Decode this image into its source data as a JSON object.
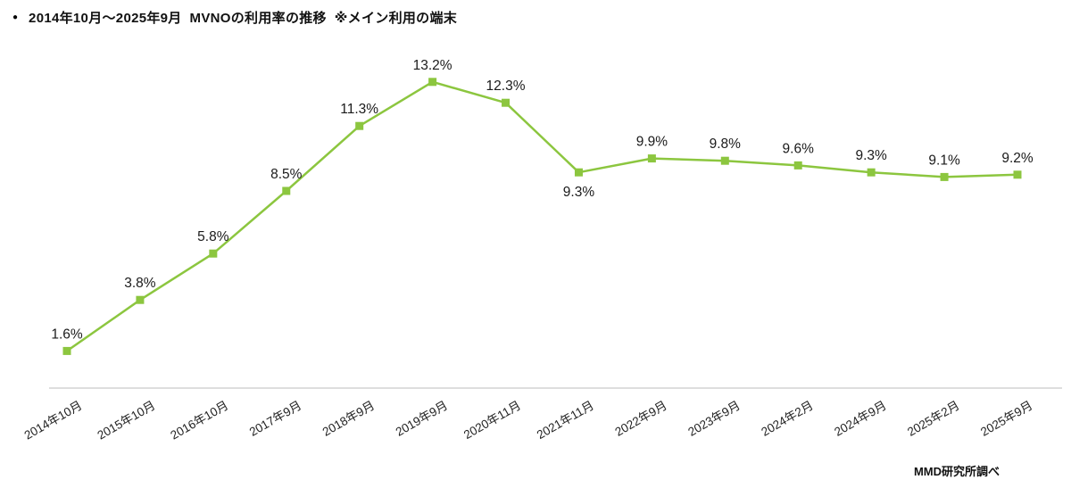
{
  "title": {
    "bullet": "●",
    "text": "2014年10月～2025年9月  MVNOの利用率の推移  ※メイン利用の端末"
  },
  "source": "MMD研究所調べ",
  "chart_data": {
    "type": "line",
    "title": "2014年10月～2025年9月 MVNOの利用率の推移 ※メイン利用の端末",
    "categories": [
      "2014年10月",
      "2015年10月",
      "2016年10月",
      "2017年9月",
      "2018年9月",
      "2019年9月",
      "2020年11月",
      "2021年11月",
      "2022年9月",
      "2023年9月",
      "2024年2月",
      "2024年9月",
      "2025年2月",
      "2025年9月"
    ],
    "values": [
      1.6,
      3.8,
      5.8,
      8.5,
      11.3,
      13.2,
      12.3,
      9.3,
      9.9,
      9.8,
      9.6,
      9.3,
      9.1,
      9.2
    ],
    "unit": "%",
    "xlabel": "",
    "ylabel": "",
    "ylim": [
      0,
      14
    ],
    "grid": false,
    "legend": "none",
    "marker": "square",
    "line_color": "#8CC63F",
    "marker_color": "#8CC63F",
    "axis_color": "#c9c9c9",
    "value_label_color": "#1a1a1a",
    "tick_label_color": "#222222",
    "label_below_indices": [
      7
    ]
  }
}
